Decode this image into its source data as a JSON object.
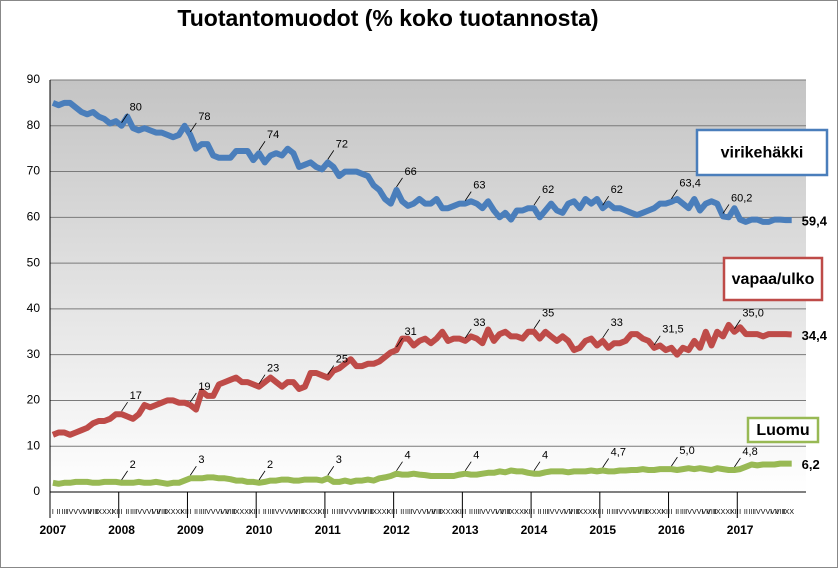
{
  "chart_data": {
    "type": "line",
    "title": "Tuotantomuodot (% koko tuotannosta)",
    "categories": [
      "I",
      "II",
      "III",
      "IV",
      "V",
      "VI",
      "VII",
      "VIII",
      "IX",
      "X",
      "XI",
      "XII",
      "I",
      "II",
      "III",
      "IV",
      "V",
      "VI",
      "VII",
      "VIII",
      "IX",
      "X",
      "XI",
      "XII",
      "I",
      "II",
      "III",
      "IV",
      "V",
      "VI",
      "VII",
      "VIII",
      "IX",
      "X",
      "XI",
      "XII",
      "I",
      "II",
      "III",
      "IV",
      "V",
      "VI",
      "VII",
      "VIII",
      "IX",
      "X",
      "XI",
      "XII",
      "I",
      "II",
      "III",
      "IV",
      "V",
      "VI",
      "VII",
      "VIII",
      "IX",
      "X",
      "XI",
      "XII",
      "I",
      "II",
      "III",
      "IV",
      "V",
      "VI",
      "VII",
      "VIII",
      "IX",
      "X",
      "XI",
      "XII",
      "I",
      "II",
      "III",
      "IV",
      "V",
      "VI",
      "VII",
      "VIII",
      "IX",
      "X",
      "XI",
      "XII",
      "I",
      "II",
      "III",
      "IV",
      "V",
      "VI",
      "VII",
      "VIII",
      "IX",
      "X",
      "XI",
      "XII",
      "I",
      "II",
      "III",
      "IV",
      "V",
      "VI",
      "VII",
      "VIII",
      "IX",
      "X",
      "XI",
      "XII",
      "I",
      "II",
      "III",
      "IV",
      "V",
      "VI",
      "VII",
      "VIII",
      "IX",
      "X",
      "XI",
      "XII",
      "I",
      "II",
      "III",
      "IV",
      "V",
      "VI",
      "VII",
      "VIII",
      "IX",
      "X"
    ],
    "years": [
      "2007",
      "2008",
      "2009",
      "2010",
      "2011",
      "2012",
      "2013",
      "2014",
      "2015",
      "2016",
      "2017"
    ],
    "ylim": [
      0,
      90
    ],
    "yticks": [
      0,
      10,
      20,
      30,
      40,
      50,
      60,
      70,
      80,
      90
    ],
    "grid": true,
    "series": [
      {
        "name": "virikehäkki",
        "color": "#4a7ebb",
        "values": [
          85,
          84.5,
          85,
          85,
          84,
          83,
          82.5,
          83,
          82,
          81.5,
          80.5,
          81,
          80,
          82,
          79.5,
          79,
          79.5,
          79,
          78.5,
          78.5,
          78,
          77.5,
          78,
          80,
          78,
          75,
          76,
          76,
          73.5,
          73,
          73,
          73,
          74.5,
          74.5,
          74.5,
          72.5,
          74,
          72,
          73.5,
          74,
          73.5,
          75,
          74,
          71,
          71.5,
          72,
          71,
          70.5,
          72,
          71,
          69,
          70,
          70,
          70,
          69.5,
          69,
          67,
          66,
          64,
          63,
          66,
          63.5,
          62.5,
          63,
          64,
          63,
          63,
          64,
          62,
          62,
          62.5,
          63,
          63,
          63.5,
          63,
          62,
          63.5,
          61.5,
          60,
          61,
          59.5,
          61.5,
          61.5,
          62,
          62,
          60,
          61.5,
          63,
          61.5,
          61,
          63,
          63.5,
          62,
          64,
          63,
          64,
          62,
          63,
          62,
          62,
          61.5,
          61,
          60.5,
          61,
          61.5,
          62,
          63,
          63,
          63.4,
          64,
          63,
          62,
          64,
          61.5,
          63,
          63.5,
          63,
          60.2,
          60,
          62,
          59.5,
          59,
          59.5,
          59.5,
          59,
          59,
          59.5,
          59.5,
          59.4,
          59.4
        ],
        "value_labels": [
          null,
          null,
          null,
          null,
          null,
          null,
          null,
          null,
          null,
          null,
          null,
          null,
          "80",
          null,
          null,
          null,
          null,
          null,
          null,
          null,
          null,
          null,
          null,
          null,
          "78",
          null,
          null,
          null,
          null,
          null,
          null,
          null,
          null,
          null,
          null,
          null,
          "74",
          null,
          null,
          null,
          null,
          null,
          null,
          null,
          null,
          null,
          null,
          null,
          "72",
          null,
          null,
          null,
          null,
          null,
          null,
          null,
          null,
          null,
          null,
          null,
          "66",
          null,
          null,
          null,
          null,
          null,
          null,
          null,
          null,
          null,
          null,
          null,
          "63",
          null,
          null,
          null,
          null,
          null,
          null,
          null,
          null,
          null,
          null,
          null,
          "62",
          null,
          null,
          null,
          null,
          null,
          null,
          null,
          null,
          null,
          null,
          null,
          "62",
          null,
          null,
          null,
          null,
          null,
          null,
          null,
          null,
          null,
          null,
          null,
          "63,4",
          null,
          null,
          null,
          null,
          null,
          null,
          null,
          null,
          "60,2",
          null,
          null,
          null,
          null,
          null,
          null,
          null,
          null,
          null,
          null,
          null,
          "59,4"
        ]
      },
      {
        "name": "vapaa/ulko",
        "color": "#be4b48",
        "values": [
          12.5,
          13,
          13,
          12.5,
          13,
          13.5,
          14,
          15,
          15.5,
          15.5,
          16,
          17,
          17,
          16.5,
          16,
          17,
          19,
          18.5,
          19,
          19.5,
          20,
          20,
          19.5,
          19.5,
          19,
          18,
          22,
          21,
          21,
          23.5,
          24,
          24.5,
          25,
          24,
          24,
          23.5,
          23,
          24,
          25,
          24,
          23,
          24,
          24,
          22.5,
          23,
          26,
          26,
          25.5,
          25,
          26.5,
          27,
          28,
          29,
          27.5,
          27.5,
          28,
          28,
          28.5,
          29.5,
          30.5,
          31,
          33.5,
          33.5,
          32,
          33,
          33.5,
          32.5,
          33.5,
          35,
          33,
          33.5,
          33.5,
          33,
          34,
          33.5,
          32.5,
          35.5,
          33,
          34.5,
          35,
          34,
          34,
          33.5,
          35,
          35,
          33.5,
          35,
          34,
          33,
          34,
          33,
          31,
          31.5,
          33,
          33.5,
          32,
          33,
          31.5,
          32.5,
          32.5,
          33,
          34.5,
          34.5,
          33.5,
          33,
          31.5,
          32,
          31,
          31.5,
          30,
          31.5,
          31,
          33,
          31.5,
          35,
          32,
          35,
          34,
          36.5,
          35,
          36,
          34.5,
          34.5,
          34.5,
          34,
          34.5,
          34.5,
          34.5,
          34.5,
          34.4
        ],
        "value_labels": [
          null,
          null,
          null,
          null,
          null,
          null,
          null,
          null,
          null,
          null,
          null,
          null,
          "17",
          null,
          null,
          null,
          null,
          null,
          null,
          null,
          null,
          null,
          null,
          null,
          "19",
          null,
          null,
          null,
          null,
          null,
          null,
          null,
          null,
          null,
          null,
          null,
          "23",
          null,
          null,
          null,
          null,
          null,
          null,
          null,
          null,
          null,
          null,
          null,
          "25",
          null,
          null,
          null,
          null,
          null,
          null,
          null,
          null,
          null,
          null,
          null,
          "31",
          null,
          null,
          null,
          null,
          null,
          null,
          null,
          null,
          null,
          null,
          null,
          "33",
          null,
          null,
          null,
          null,
          null,
          null,
          null,
          null,
          null,
          null,
          null,
          "35",
          null,
          null,
          null,
          null,
          null,
          null,
          null,
          null,
          null,
          null,
          null,
          "33",
          null,
          null,
          null,
          null,
          null,
          null,
          null,
          null,
          "31,5",
          null,
          null,
          null,
          null,
          null,
          null,
          null,
          null,
          null,
          null,
          null,
          null,
          null,
          "35,0",
          null,
          null,
          null,
          null,
          null,
          null,
          null,
          null,
          null,
          "34,4"
        ]
      },
      {
        "name": "Luomu",
        "color": "#98b954",
        "values": [
          2,
          1.8,
          2,
          2,
          2.2,
          2.2,
          2.2,
          2,
          2,
          2.2,
          2.2,
          2.2,
          2,
          2,
          2,
          2.2,
          2,
          2,
          2.2,
          2,
          1.8,
          2,
          2,
          2.5,
          3,
          3,
          3,
          3.2,
          3.2,
          3,
          3,
          2.8,
          2.5,
          2.5,
          2.2,
          2.2,
          2,
          2.2,
          2.5,
          2.5,
          2.7,
          2.7,
          2.5,
          2.5,
          2.7,
          2.7,
          2.7,
          2.5,
          3,
          2.2,
          2.2,
          2.5,
          2.2,
          2.5,
          2.5,
          2.7,
          2.5,
          3,
          3.2,
          3.5,
          4,
          3.8,
          3.8,
          4,
          3.8,
          3.7,
          3.5,
          3.5,
          3.5,
          3.5,
          3.5,
          3.8,
          4,
          3.8,
          3.8,
          4,
          4.2,
          4.2,
          4.5,
          4.3,
          4.7,
          4.5,
          4.5,
          4.2,
          4,
          4,
          4.3,
          4.5,
          4.5,
          4.5,
          4.3,
          4.5,
          4.5,
          4.5,
          4.7,
          4.5,
          4.7,
          4.5,
          4.5,
          4.7,
          4.7,
          4.8,
          4.8,
          5,
          4.8,
          4.8,
          5,
          5,
          5,
          4.8,
          5,
          5.2,
          5,
          5.2,
          5,
          4.8,
          5.2,
          5,
          4.8,
          4.8,
          5,
          5.5,
          6,
          5.8,
          6,
          6,
          6,
          6.2,
          6.2,
          6.2
        ],
        "value_labels": [
          null,
          null,
          null,
          null,
          null,
          null,
          null,
          null,
          null,
          null,
          null,
          null,
          "2",
          null,
          null,
          null,
          null,
          null,
          null,
          null,
          null,
          null,
          null,
          null,
          "3",
          null,
          null,
          null,
          null,
          null,
          null,
          null,
          null,
          null,
          null,
          null,
          "2",
          null,
          null,
          null,
          null,
          null,
          null,
          null,
          null,
          null,
          null,
          null,
          "3",
          null,
          null,
          null,
          null,
          null,
          null,
          null,
          null,
          null,
          null,
          null,
          "4",
          null,
          null,
          null,
          null,
          null,
          null,
          null,
          null,
          null,
          null,
          null,
          "4",
          null,
          null,
          null,
          null,
          null,
          null,
          null,
          null,
          null,
          null,
          null,
          "4",
          null,
          null,
          null,
          null,
          null,
          null,
          null,
          null,
          null,
          null,
          null,
          "4,7",
          null,
          null,
          null,
          null,
          null,
          null,
          null,
          null,
          null,
          null,
          null,
          "5,0",
          null,
          null,
          null,
          null,
          null,
          null,
          null,
          null,
          null,
          null,
          "4,8",
          null,
          null,
          null,
          null,
          null,
          null,
          null,
          null,
          null,
          "6,2"
        ]
      }
    ]
  }
}
